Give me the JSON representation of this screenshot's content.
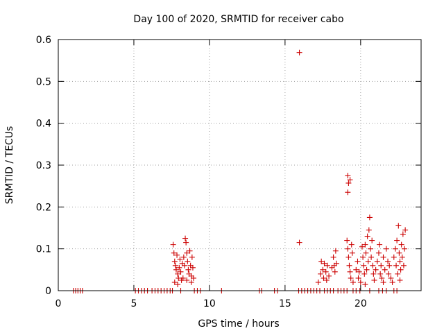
{
  "chart_data": {
    "type": "scatter",
    "title": "Day 100 of 2020, SRMTID for receiver cabo",
    "xlabel": "GPS time / hours",
    "ylabel": "SRMTID / TECUs",
    "xlim": [
      0,
      24
    ],
    "ylim": [
      0,
      0.6
    ],
    "xticks": [
      0,
      5,
      10,
      15,
      20
    ],
    "xtick_labels": [
      "0",
      "5",
      "10",
      "15",
      "20"
    ],
    "yticks": [
      0,
      0.1,
      0.2,
      0.3,
      0.4,
      0.5,
      0.6
    ],
    "ytick_labels": [
      "0",
      "0.1",
      "0.2",
      "0.3",
      "0.4",
      "0.5",
      "0.6"
    ],
    "grid": true,
    "marker": "+",
    "color": "#cc0000",
    "series": [
      {
        "name": "SRMTID",
        "points": [
          [
            1.0,
            0
          ],
          [
            1.15,
            0
          ],
          [
            1.3,
            0
          ],
          [
            1.45,
            0
          ],
          [
            1.6,
            0
          ],
          [
            5.1,
            0
          ],
          [
            5.3,
            0
          ],
          [
            5.5,
            0
          ],
          [
            5.7,
            0
          ],
          [
            5.9,
            0
          ],
          [
            6.2,
            0
          ],
          [
            6.4,
            0
          ],
          [
            6.6,
            0
          ],
          [
            6.8,
            0
          ],
          [
            7.0,
            0
          ],
          [
            7.2,
            0
          ],
          [
            7.4,
            0
          ],
          [
            7.55,
            0
          ],
          [
            8.1,
            0
          ],
          [
            9.0,
            0
          ],
          [
            9.2,
            0
          ],
          [
            9.4,
            0
          ],
          [
            10.8,
            0
          ],
          [
            13.3,
            0
          ],
          [
            13.45,
            0
          ],
          [
            14.3,
            0
          ],
          [
            14.5,
            0
          ],
          [
            15.9,
            0
          ],
          [
            16.1,
            0
          ],
          [
            16.3,
            0
          ],
          [
            16.5,
            0
          ],
          [
            16.7,
            0
          ],
          [
            16.9,
            0
          ],
          [
            17.1,
            0
          ],
          [
            17.3,
            0
          ],
          [
            17.6,
            0
          ],
          [
            17.8,
            0
          ],
          [
            18.0,
            0
          ],
          [
            18.2,
            0
          ],
          [
            18.5,
            0
          ],
          [
            18.7,
            0
          ],
          [
            18.9,
            0
          ],
          [
            19.1,
            0
          ],
          [
            19.5,
            0
          ],
          [
            19.7,
            0
          ],
          [
            19.95,
            0
          ],
          [
            20.6,
            0
          ],
          [
            21.2,
            0
          ],
          [
            21.45,
            0
          ],
          [
            21.7,
            0
          ],
          [
            22.2,
            0
          ],
          [
            22.4,
            0
          ],
          [
            15.95,
            0.569
          ],
          [
            15.95,
            0.115
          ],
          [
            19.15,
            0.275
          ],
          [
            19.2,
            0.257
          ],
          [
            19.3,
            0.265
          ],
          [
            19.15,
            0.235
          ],
          [
            7.6,
            0.11
          ],
          [
            7.65,
            0.09
          ],
          [
            7.7,
            0.07
          ],
          [
            7.75,
            0.06
          ],
          [
            7.8,
            0.05
          ],
          [
            7.85,
            0.085
          ],
          [
            7.9,
            0.04
          ],
          [
            7.95,
            0.03
          ],
          [
            8.0,
            0.055
          ],
          [
            8.05,
            0.075
          ],
          [
            8.1,
            0.045
          ],
          [
            8.15,
            0.025
          ],
          [
            8.2,
            0.065
          ],
          [
            8.3,
            0.08
          ],
          [
            8.35,
            0.06
          ],
          [
            8.4,
            0.125
          ],
          [
            8.45,
            0.115
          ],
          [
            8.5,
            0.09
          ],
          [
            8.55,
            0.07
          ],
          [
            8.6,
            0.05
          ],
          [
            8.65,
            0.04
          ],
          [
            8.7,
            0.095
          ],
          [
            8.75,
            0.06
          ],
          [
            8.8,
            0.035
          ],
          [
            8.85,
            0.08
          ],
          [
            8.9,
            0.055
          ],
          [
            8.95,
            0.03
          ],
          [
            7.7,
            0.02
          ],
          [
            7.9,
            0.015
          ],
          [
            8.25,
            0.03
          ],
          [
            8.5,
            0.025
          ],
          [
            8.8,
            0.02
          ],
          [
            17.2,
            0.02
          ],
          [
            17.35,
            0.04
          ],
          [
            17.4,
            0.07
          ],
          [
            17.5,
            0.05
          ],
          [
            17.55,
            0.03
          ],
          [
            17.6,
            0.065
          ],
          [
            17.7,
            0.045
          ],
          [
            17.75,
            0.025
          ],
          [
            17.8,
            0.06
          ],
          [
            17.9,
            0.035
          ],
          [
            18.1,
            0.055
          ],
          [
            18.2,
            0.08
          ],
          [
            18.25,
            0.06
          ],
          [
            18.3,
            0.045
          ],
          [
            18.35,
            0.095
          ],
          [
            18.4,
            0.065
          ],
          [
            19.1,
            0.12
          ],
          [
            19.15,
            0.1
          ],
          [
            19.2,
            0.08
          ],
          [
            19.25,
            0.06
          ],
          [
            19.3,
            0.045
          ],
          [
            19.35,
            0.03
          ],
          [
            19.4,
            0.11
          ],
          [
            19.45,
            0.09
          ],
          [
            19.5,
            0.02
          ],
          [
            19.7,
            0.05
          ],
          [
            19.8,
            0.07
          ],
          [
            19.85,
            0.03
          ],
          [
            19.9,
            0.045
          ],
          [
            20.1,
            0.105
          ],
          [
            20.15,
            0.08
          ],
          [
            20.2,
            0.06
          ],
          [
            20.25,
            0.04
          ],
          [
            20.3,
            0.11
          ],
          [
            20.35,
            0.09
          ],
          [
            20.4,
            0.05
          ],
          [
            20.45,
            0.13
          ],
          [
            20.5,
            0.07
          ],
          [
            20.55,
            0.145
          ],
          [
            20.6,
            0.175
          ],
          [
            20.65,
            0.1
          ],
          [
            20.7,
            0.08
          ],
          [
            20.75,
            0.12
          ],
          [
            20.8,
            0.06
          ],
          [
            20.85,
            0.04
          ],
          [
            21.0,
            0.05
          ],
          [
            21.1,
            0.07
          ],
          [
            21.2,
            0.09
          ],
          [
            21.25,
            0.11
          ],
          [
            21.3,
            0.04
          ],
          [
            21.35,
            0.06
          ],
          [
            21.4,
            0.03
          ],
          [
            21.5,
            0.08
          ],
          [
            21.6,
            0.05
          ],
          [
            21.7,
            0.1
          ],
          [
            21.8,
            0.07
          ],
          [
            21.85,
            0.04
          ],
          [
            21.9,
            0.06
          ],
          [
            22.0,
            0.03
          ],
          [
            22.2,
            0.08
          ],
          [
            22.3,
            0.1
          ],
          [
            22.35,
            0.06
          ],
          [
            22.4,
            0.12
          ],
          [
            22.45,
            0.04
          ],
          [
            22.5,
            0.155
          ],
          [
            22.55,
            0.09
          ],
          [
            22.6,
            0.07
          ],
          [
            22.65,
            0.05
          ],
          [
            22.7,
            0.11
          ],
          [
            22.75,
            0.08
          ],
          [
            22.8,
            0.135
          ],
          [
            22.85,
            0.06
          ],
          [
            22.9,
            0.1
          ],
          [
            22.95,
            0.145
          ],
          [
            20.0,
            0.02
          ],
          [
            20.3,
            0.015
          ],
          [
            20.9,
            0.025
          ],
          [
            21.5,
            0.02
          ],
          [
            22.1,
            0.02
          ],
          [
            22.6,
            0.025
          ]
        ]
      }
    ]
  }
}
